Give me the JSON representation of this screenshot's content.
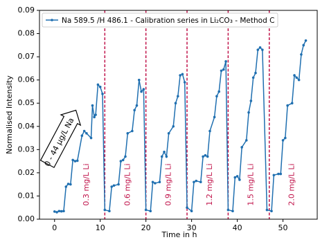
{
  "chart_data": {
    "type": "line",
    "xlabel": "Time in h",
    "ylabel": "Normalised Intensity",
    "xlim": [
      -3.3,
      57.5
    ],
    "ylim": [
      0,
      0.09
    ],
    "xticks": [
      0,
      10,
      20,
      30,
      40,
      50
    ],
    "yticks": [
      {
        "value": 0,
        "label": "0.00"
      },
      {
        "value": 0.01,
        "label": "0.01"
      },
      {
        "value": 0.02,
        "label": "0.02"
      },
      {
        "value": 0.03,
        "label": "0.03"
      },
      {
        "value": 0.04,
        "label": "0.04"
      },
      {
        "value": 0.05,
        "label": "0.05"
      },
      {
        "value": 0.06,
        "label": "0.06"
      },
      {
        "value": 0.07,
        "label": "0.07"
      },
      {
        "value": 0.08,
        "label": "0.08"
      },
      {
        "value": 0.09,
        "label": "0.09"
      }
    ],
    "series": [
      {
        "name": "Na 589.5 /H 486.1 - Calibration series in Li₂CO₃ - Method C",
        "color": "#1f6fb0",
        "x": [
          0,
          0.5,
          1,
          1.5,
          2,
          2.5,
          3,
          3.5,
          4,
          4.5,
          5,
          6,
          6.5,
          7,
          8,
          8.3,
          8.7,
          9,
          9.5,
          10,
          10.5,
          11,
          12,
          12.5,
          13,
          14,
          14.5,
          15,
          15.5,
          16,
          17,
          17.5,
          18,
          18.5,
          19,
          19.5,
          20,
          21,
          21.5,
          22,
          23,
          23.5,
          24,
          24.5,
          25,
          26,
          26.5,
          27,
          27.5,
          28,
          28.5,
          29,
          30,
          30.5,
          31,
          32,
          32.5,
          33,
          33.5,
          34,
          35,
          35.5,
          36,
          36.5,
          37,
          37.5,
          38,
          39,
          39.5,
          40,
          40.5,
          41,
          42,
          42.5,
          43,
          43.5,
          44,
          44.5,
          45,
          45.5,
          46.5,
          47.5,
          48,
          49,
          49.5,
          50,
          50.5,
          51,
          52,
          52.5,
          53,
          53.5,
          54,
          54.5,
          55
        ],
        "values": [
          0.0033,
          0.003,
          0.0035,
          0.0034,
          0.0035,
          0.014,
          0.0152,
          0.015,
          0.0255,
          0.025,
          0.0252,
          0.036,
          0.038,
          0.037,
          0.035,
          0.049,
          0.044,
          0.045,
          0.058,
          0.057,
          0.054,
          0.004,
          0.0035,
          0.014,
          0.0145,
          0.015,
          0.025,
          0.0255,
          0.027,
          0.037,
          0.038,
          0.047,
          0.049,
          0.06,
          0.055,
          0.056,
          0.004,
          0.0035,
          0.016,
          0.0155,
          0.016,
          0.027,
          0.029,
          0.027,
          0.037,
          0.04,
          0.05,
          0.053,
          0.062,
          0.0625,
          0.059,
          0.005,
          0.0035,
          0.016,
          0.0165,
          0.016,
          0.027,
          0.0275,
          0.027,
          0.038,
          0.044,
          0.053,
          0.055,
          0.064,
          0.0645,
          0.068,
          0.004,
          0.0035,
          0.018,
          0.0185,
          0.017,
          0.031,
          0.034,
          0.046,
          0.051,
          0.061,
          0.063,
          0.073,
          0.074,
          0.073,
          0.004,
          0.0035,
          0.019,
          0.0195,
          0.0195,
          0.034,
          0.035,
          0.049,
          0.05,
          0.062,
          0.061,
          0.06,
          0.071,
          0.075,
          0.077
        ]
      }
    ],
    "vlines": [
      11,
      20,
      29,
      38,
      47
    ],
    "vline_color": "#c0134a",
    "annotations": [
      "0.3 mg/L Li",
      "0.6 mg/L Li",
      "0.9 mg/L Li",
      "1.2 mg/L Li",
      "1.5 mg/L Li",
      "2.0 mg/L Li"
    ],
    "arrow_label": "0 - 44 µg/L Na",
    "legend": "upper left"
  }
}
